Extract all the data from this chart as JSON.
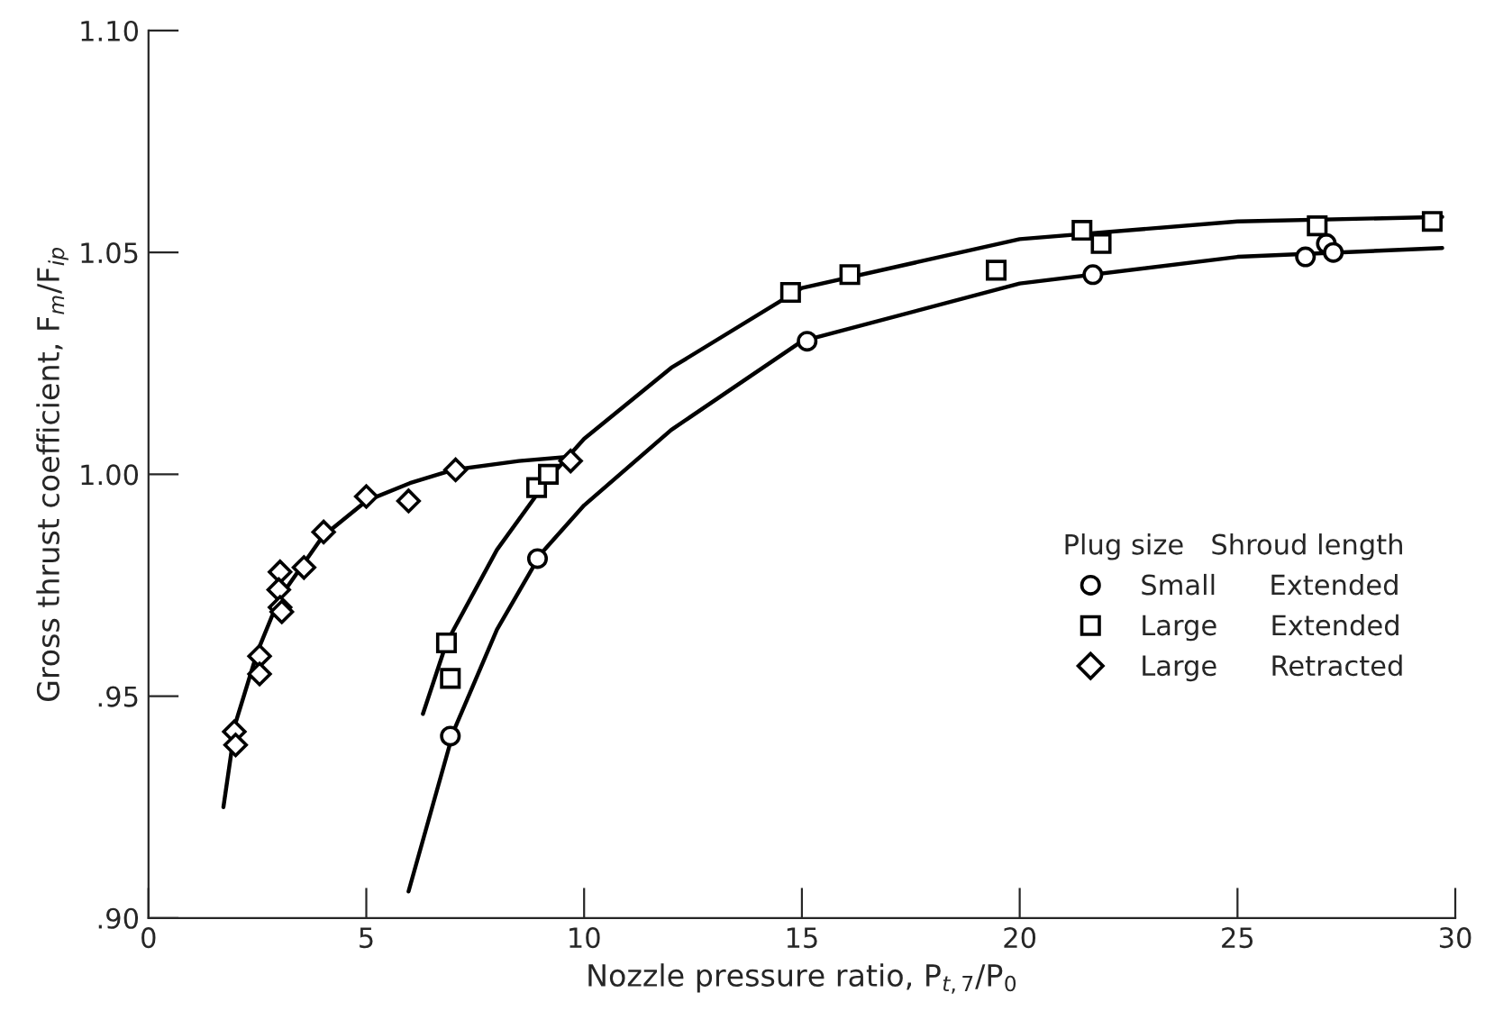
{
  "chart_data": {
    "type": "scatter",
    "xlabel": "Nozzle pressure ratio, P$_{t,7}$/P$_{0}$",
    "ylabel": "Gross thrust coefficient, F$_{m}$/F$_{ip}$",
    "legend_title": "Plug size   Shroud length",
    "legend": "right",
    "grid": false,
    "xlim": [
      0,
      30
    ],
    "xticks": [
      0,
      5,
      10,
      15,
      20,
      25,
      30
    ],
    "ylim": [
      0.9,
      1.1
    ],
    "yticks": [
      {
        "value": 0.9,
        "label": ".90"
      },
      {
        "value": 0.95,
        "label": ".95"
      },
      {
        "value": 1.0,
        "label": "1.00"
      },
      {
        "value": 1.05,
        "label": "1.05"
      },
      {
        "value": 1.1,
        "label": "1.10"
      }
    ],
    "series": [
      {
        "name": "Small      Extended",
        "marker": "circle",
        "color": "#000000",
        "x": [
          6.93,
          8.93,
          15.12,
          21.68,
          26.56,
          27.04,
          27.2
        ],
        "values": [
          0.941,
          0.981,
          1.03,
          1.045,
          1.049,
          1.052,
          1.05
        ]
      },
      {
        "name": "Large      Extended",
        "marker": "square",
        "color": "#000000",
        "x": [
          6.84,
          6.93,
          8.91,
          9.18,
          14.74,
          16.1,
          19.46,
          21.43,
          21.87,
          26.83,
          29.47
        ],
        "values": [
          0.962,
          0.954,
          0.997,
          1.0,
          1.041,
          1.045,
          1.046,
          1.055,
          1.052,
          1.056,
          1.057
        ]
      },
      {
        "name": "Large      Retracted",
        "marker": "diamond",
        "color": "#000000",
        "x": [
          1.97,
          2.0,
          2.55,
          2.55,
          3.02,
          2.99,
          3.02,
          3.06,
          3.57,
          4.02,
          5.0,
          5.97,
          7.05,
          9.69
        ],
        "values": [
          0.942,
          0.939,
          0.959,
          0.955,
          0.978,
          0.974,
          0.97,
          0.969,
          0.979,
          0.987,
          0.995,
          0.994,
          1.001,
          1.003
        ]
      },
      {
        "type": "line",
        "marker": "none",
        "line_style": "solid",
        "color": "#000000",
        "x": [
          5.97,
          7,
          8,
          9,
          10,
          12,
          15,
          20,
          25,
          29.7
        ],
        "values": [
          0.906,
          0.942,
          0.965,
          0.982,
          0.993,
          1.01,
          1.03,
          1.043,
          1.049,
          1.051
        ]
      },
      {
        "type": "line",
        "marker": "none",
        "line_style": "solid",
        "color": "#000000",
        "x": [
          6.3,
          6.84,
          8,
          9.18,
          10,
          12,
          15,
          20,
          25,
          29.7
        ],
        "values": [
          0.946,
          0.962,
          0.983,
          0.999,
          1.008,
          1.024,
          1.042,
          1.053,
          1.057,
          1.058
        ]
      },
      {
        "type": "line",
        "marker": "none",
        "line_style": "solid",
        "color": "#000000",
        "x": [
          1.72,
          2,
          2.5,
          3,
          4,
          5,
          6,
          7,
          8.5,
          9.7
        ],
        "values": [
          0.925,
          0.944,
          0.96,
          0.972,
          0.986,
          0.994,
          0.998,
          1.001,
          1.003,
          1.004
        ]
      }
    ]
  }
}
